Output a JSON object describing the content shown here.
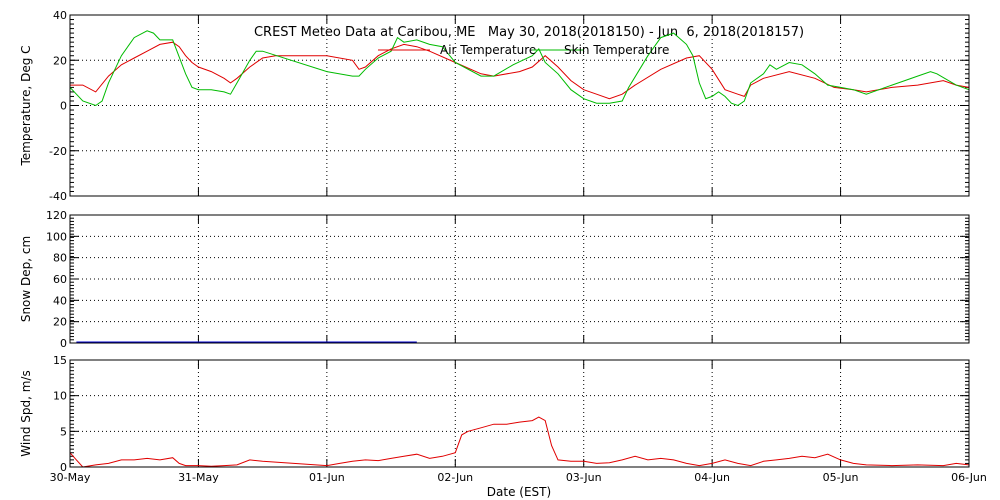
{
  "colors": {
    "air": "#e00000",
    "skin": "#00bb00",
    "snow": "#0000cc",
    "wind": "#e00000",
    "axis": "#000000"
  },
  "chart_data": {
    "type": "line",
    "title": "CREST Meteo Data at Caribou, ME   May 30, 2018(2018150) - Jun  6, 2018(2018157)",
    "xlabel": "Date (EST)",
    "x_ticks": [
      "30-May",
      "31-May",
      "01-Jun",
      "02-Jun",
      "03-Jun",
      "04-Jun",
      "05-Jun",
      "06-Jun"
    ],
    "xlim": [
      0,
      7
    ],
    "x_unit": "days since 30-May 00:00 EST",
    "grid": true,
    "panels": [
      {
        "id": "temperature",
        "ylabel": "Temperature, Deg C",
        "ylim": [
          -40,
          40
        ],
        "yticks": [
          -40,
          -20,
          0,
          20,
          40
        ],
        "legend_position": "top-center",
        "series": [
          {
            "name": "Air Temperature",
            "color": "#e00000",
            "points": [
              [
                0,
                9
              ],
              [
                0.1,
                9
              ],
              [
                0.2,
                6
              ],
              [
                0.3,
                13
              ],
              [
                0.4,
                18
              ],
              [
                0.5,
                21
              ],
              [
                0.6,
                24
              ],
              [
                0.7,
                27
              ],
              [
                0.8,
                28
              ],
              [
                0.85,
                26
              ],
              [
                0.9,
                22
              ],
              [
                0.95,
                19
              ],
              [
                1,
                17
              ],
              [
                1.1,
                15
              ],
              [
                1.2,
                12
              ],
              [
                1.25,
                10
              ],
              [
                1.3,
                12
              ],
              [
                1.4,
                17
              ],
              [
                1.5,
                21
              ],
              [
                1.6,
                22
              ],
              [
                2.0,
                22
              ],
              [
                2.2,
                20
              ],
              [
                2.25,
                16
              ],
              [
                2.3,
                17
              ],
              [
                2.4,
                22
              ],
              [
                2.5,
                25
              ],
              [
                2.6,
                27
              ],
              [
                2.7,
                26
              ],
              [
                2.8,
                24
              ],
              [
                3.0,
                19
              ],
              [
                3.2,
                14
              ],
              [
                3.3,
                13
              ],
              [
                3.5,
                15
              ],
              [
                3.6,
                17
              ],
              [
                3.7,
                22
              ],
              [
                3.8,
                17
              ],
              [
                3.9,
                11
              ],
              [
                4.0,
                7
              ],
              [
                4.1,
                5
              ],
              [
                4.2,
                3
              ],
              [
                4.3,
                5
              ],
              [
                4.4,
                9
              ],
              [
                4.6,
                16
              ],
              [
                4.8,
                21
              ],
              [
                4.9,
                22
              ],
              [
                5.0,
                16
              ],
              [
                5.1,
                7
              ],
              [
                5.2,
                5
              ],
              [
                5.25,
                4
              ],
              [
                5.3,
                9
              ],
              [
                5.4,
                12
              ],
              [
                5.6,
                15
              ],
              [
                5.8,
                12
              ],
              [
                5.95,
                8
              ],
              [
                6.1,
                7
              ],
              [
                6.2,
                6
              ],
              [
                6.4,
                8
              ],
              [
                6.6,
                9
              ],
              [
                6.8,
                11
              ],
              [
                6.9,
                9
              ],
              [
                7.0,
                8
              ]
            ]
          },
          {
            "name": "Skin Temperature",
            "color": "#00bb00",
            "points": [
              [
                0,
                8
              ],
              [
                0.05,
                5
              ],
              [
                0.1,
                2
              ],
              [
                0.2,
                0
              ],
              [
                0.25,
                2
              ],
              [
                0.3,
                10
              ],
              [
                0.4,
                22
              ],
              [
                0.5,
                30
              ],
              [
                0.6,
                33
              ],
              [
                0.65,
                32
              ],
              [
                0.7,
                29
              ],
              [
                0.8,
                29
              ],
              [
                0.9,
                14
              ],
              [
                0.95,
                8
              ],
              [
                1.0,
                7
              ],
              [
                1.1,
                7
              ],
              [
                1.2,
                6
              ],
              [
                1.25,
                5
              ],
              [
                1.3,
                10
              ],
              [
                1.4,
                20
              ],
              [
                1.45,
                24
              ],
              [
                1.5,
                24
              ],
              [
                2.0,
                15
              ],
              [
                2.2,
                13
              ],
              [
                2.25,
                13
              ],
              [
                2.3,
                16
              ],
              [
                2.4,
                21
              ],
              [
                2.5,
                24
              ],
              [
                2.55,
                30
              ],
              [
                2.6,
                28
              ],
              [
                2.7,
                29
              ],
              [
                2.8,
                27
              ],
              [
                2.9,
                26
              ],
              [
                3.0,
                19
              ],
              [
                3.2,
                13
              ],
              [
                3.3,
                13
              ],
              [
                3.45,
                18
              ],
              [
                3.6,
                22
              ],
              [
                3.65,
                25
              ],
              [
                3.7,
                19
              ],
              [
                3.8,
                14
              ],
              [
                3.9,
                7
              ],
              [
                4.0,
                3
              ],
              [
                4.1,
                1
              ],
              [
                4.2,
                1
              ],
              [
                4.3,
                2
              ],
              [
                4.35,
                8
              ],
              [
                4.5,
                22
              ],
              [
                4.6,
                30
              ],
              [
                4.7,
                32
              ],
              [
                4.8,
                27
              ],
              [
                4.85,
                22
              ],
              [
                4.9,
                10
              ],
              [
                4.95,
                3
              ],
              [
                5.0,
                4
              ],
              [
                5.05,
                6
              ],
              [
                5.1,
                4
              ],
              [
                5.15,
                1
              ],
              [
                5.2,
                0
              ],
              [
                5.25,
                2
              ],
              [
                5.3,
                10
              ],
              [
                5.4,
                14
              ],
              [
                5.45,
                18
              ],
              [
                5.5,
                16
              ],
              [
                5.6,
                19
              ],
              [
                5.7,
                18
              ],
              [
                5.8,
                14
              ],
              [
                5.9,
                9
              ],
              [
                6.0,
                8
              ],
              [
                6.1,
                7
              ],
              [
                6.2,
                5
              ],
              [
                6.4,
                9
              ],
              [
                6.5,
                11
              ],
              [
                6.6,
                13
              ],
              [
                6.7,
                15
              ],
              [
                6.75,
                14
              ],
              [
                6.9,
                9
              ],
              [
                7.0,
                7
              ]
            ]
          }
        ]
      },
      {
        "id": "snow",
        "ylabel": "Snow Dep, cm",
        "ylim": [
          0,
          120
        ],
        "yticks": [
          0,
          20,
          40,
          60,
          80,
          100,
          120
        ],
        "series": [
          {
            "name": "Snow Depth",
            "color": "#0000cc",
            "points": [
              [
                0.05,
                0.5
              ],
              [
                0.2,
                0.5
              ],
              [
                2.2,
                0.5
              ],
              [
                2.3,
                0.5
              ],
              [
                2.5,
                0.5
              ],
              [
                2.7,
                0.5
              ]
            ]
          }
        ]
      },
      {
        "id": "wind",
        "ylabel": "Wind Spd, m/s",
        "ylim": [
          0,
          15
        ],
        "yticks": [
          0,
          5,
          10,
          15
        ],
        "series": [
          {
            "name": "Wind Speed",
            "color": "#e00000",
            "points": [
              [
                0,
                2
              ],
              [
                0.05,
                1
              ],
              [
                0.1,
                0
              ],
              [
                0.2,
                0.3
              ],
              [
                0.3,
                0.5
              ],
              [
                0.4,
                1
              ],
              [
                0.5,
                1
              ],
              [
                0.6,
                1.2
              ],
              [
                0.7,
                1
              ],
              [
                0.8,
                1.3
              ],
              [
                0.85,
                0.5
              ],
              [
                0.9,
                0.2
              ],
              [
                1.0,
                0.2
              ],
              [
                1.1,
                0.1
              ],
              [
                1.2,
                0.2
              ],
              [
                1.3,
                0.3
              ],
              [
                1.4,
                1
              ],
              [
                1.5,
                0.8
              ],
              [
                2.0,
                0.2
              ],
              [
                2.1,
                0.5
              ],
              [
                2.2,
                0.8
              ],
              [
                2.3,
                1
              ],
              [
                2.4,
                0.9
              ],
              [
                2.5,
                1.2
              ],
              [
                2.6,
                1.5
              ],
              [
                2.7,
                1.8
              ],
              [
                2.8,
                1.2
              ],
              [
                2.9,
                1.5
              ],
              [
                3.0,
                2
              ],
              [
                3.05,
                4.5
              ],
              [
                3.1,
                5
              ],
              [
                3.2,
                5.5
              ],
              [
                3.3,
                6
              ],
              [
                3.4,
                6
              ],
              [
                3.5,
                6.3
              ],
              [
                3.6,
                6.5
              ],
              [
                3.65,
                7
              ],
              [
                3.7,
                6.5
              ],
              [
                3.75,
                3
              ],
              [
                3.8,
                1
              ],
              [
                3.9,
                0.8
              ],
              [
                4.0,
                0.8
              ],
              [
                4.1,
                0.5
              ],
              [
                4.2,
                0.6
              ],
              [
                4.3,
                1
              ],
              [
                4.4,
                1.5
              ],
              [
                4.5,
                1
              ],
              [
                4.6,
                1.2
              ],
              [
                4.7,
                1
              ],
              [
                4.8,
                0.5
              ],
              [
                4.9,
                0.2
              ],
              [
                5.0,
                0.5
              ],
              [
                5.1,
                1
              ],
              [
                5.2,
                0.5
              ],
              [
                5.3,
                0.2
              ],
              [
                5.4,
                0.8
              ],
              [
                5.5,
                1
              ],
              [
                5.6,
                1.2
              ],
              [
                5.7,
                1.5
              ],
              [
                5.8,
                1.3
              ],
              [
                5.9,
                1.8
              ],
              [
                6.0,
                1
              ],
              [
                6.1,
                0.5
              ],
              [
                6.2,
                0.3
              ],
              [
                6.4,
                0.2
              ],
              [
                6.6,
                0.3
              ],
              [
                6.8,
                0.2
              ],
              [
                6.9,
                0.5
              ],
              [
                7.0,
                0.3
              ]
            ]
          }
        ]
      }
    ]
  }
}
